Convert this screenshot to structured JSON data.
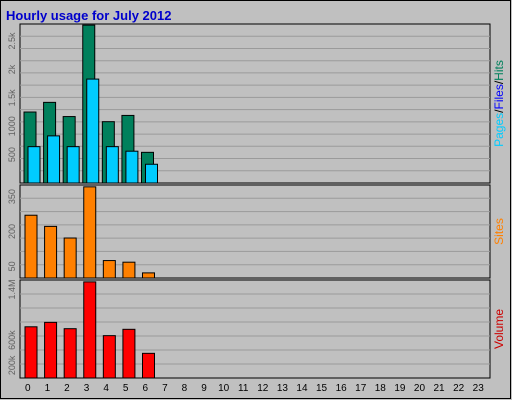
{
  "chart_data": {
    "type": "bar",
    "title": "Hourly usage for July 2012",
    "categories": [
      "0",
      "1",
      "2",
      "3",
      "4",
      "5",
      "6",
      "7",
      "8",
      "9",
      "10",
      "11",
      "12",
      "13",
      "14",
      "15",
      "16",
      "17",
      "18",
      "19",
      "20",
      "21",
      "22",
      "23"
    ],
    "colors": {
      "background": "#C0C0C0",
      "border": "#808080",
      "title": "#0000CC",
      "hits": "#00805C",
      "files": "#0000FF",
      "pages": "#00CCFF",
      "sites": "#FF8000",
      "volume": "#FF0000"
    },
    "panels": [
      {
        "name": "pages_files_hits",
        "side_label_parts": [
          {
            "text": "Pages",
            "color": "#00CCFF"
          },
          {
            "text": "/",
            "color": "#000000"
          },
          {
            "text": "Files",
            "color": "#0000FF"
          },
          {
            "text": "/",
            "color": "#000000"
          },
          {
            "text": "Hits",
            "color": "#00805C"
          }
        ],
        "ytick_labels": [
          "500",
          "1000",
          "1.5k",
          "2k",
          "2.5k"
        ],
        "ytick_values": [
          500,
          1000,
          1500,
          2000,
          2500
        ],
        "ylim": [
          0,
          2800
        ],
        "series": [
          {
            "name": "Hits",
            "color": "#00805C",
            "values": [
              1250,
              1420,
              1170,
              2780,
              1080,
              1190,
              540,
              0,
              0,
              0,
              0,
              0,
              0,
              0,
              0,
              0,
              0,
              0,
              0,
              0,
              0,
              0,
              0,
              0
            ]
          },
          {
            "name": "Pages",
            "color": "#00CCFF",
            "values": [
              640,
              830,
              640,
              1830,
              640,
              560,
              330,
              0,
              0,
              0,
              0,
              0,
              0,
              0,
              0,
              0,
              0,
              0,
              0,
              0,
              0,
              0,
              0,
              0
            ]
          }
        ]
      },
      {
        "name": "sites",
        "side_label_parts": [
          {
            "text": "Sites",
            "color": "#FF8000"
          }
        ],
        "ytick_labels": [
          "50",
          "200",
          "350"
        ],
        "ytick_values": [
          50,
          200,
          350
        ],
        "ylim": [
          0,
          400
        ],
        "series": [
          {
            "name": "Sites",
            "color": "#FF8000",
            "values": [
              270,
              222,
              172,
              392,
              75,
              68,
              22,
              0,
              0,
              0,
              0,
              0,
              0,
              0,
              0,
              0,
              0,
              0,
              0,
              0,
              0,
              0,
              0,
              0
            ]
          }
        ]
      },
      {
        "name": "volume",
        "side_label_parts": [
          {
            "text": "Volume",
            "color": "#CC0000"
          }
        ],
        "ytick_labels": [
          "200k",
          "600k",
          "1.4M"
        ],
        "ytick_values": [
          200000,
          600000,
          1400000
        ],
        "ylim": [
          0,
          1550000
        ],
        "series": [
          {
            "name": "Volume",
            "color": "#FF0000",
            "values": [
              810000,
              880000,
              780000,
              1520000,
              670000,
              770000,
              390000,
              0,
              0,
              0,
              0,
              0,
              0,
              0,
              0,
              0,
              0,
              0,
              0,
              0,
              0,
              0,
              0,
              0
            ]
          }
        ]
      }
    ]
  }
}
